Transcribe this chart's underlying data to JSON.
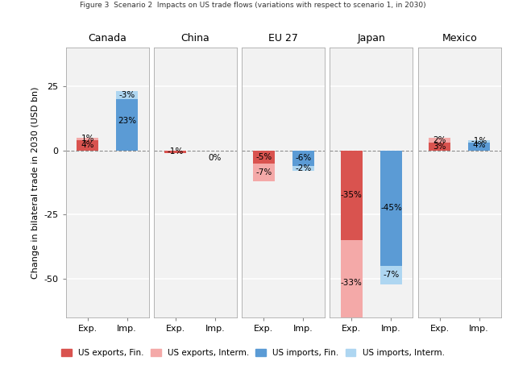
{
  "title": "Figure 3  Scenario 2  Impacts on US trade flows (variations with respect to scenario 1, in 2030)",
  "ylabel": "Change in bilateral trade in 2030 (USD bn)",
  "ylim": [
    -65,
    40
  ],
  "yticks": [
    -50,
    -25,
    0,
    25
  ],
  "groups": [
    "Canada",
    "China",
    "EU 27",
    "Japan",
    "Mexico"
  ],
  "colors": {
    "exports_fin": "#d9534f",
    "exports_interm": "#f4a9a8",
    "imports_fin": "#5b9bd5",
    "imports_interm": "#aed6f1"
  },
  "bar_width": 0.55,
  "data": {
    "Canada": {
      "Exp": {
        "fin_val": 4,
        "fin_label": "4%",
        "int_val": 1,
        "int_label": "1%",
        "type": "export"
      },
      "Imp": {
        "fin_val": 23,
        "fin_label": "23%",
        "int_val": -3,
        "int_label": "-3%",
        "type": "import"
      }
    },
    "China": {
      "Exp": {
        "fin_val": -1,
        "fin_label": "-1%",
        "int_val": 0,
        "int_label": "",
        "type": "export"
      },
      "Imp": {
        "fin_val": 0,
        "fin_label": "0%",
        "int_val": 0,
        "int_label": "",
        "type": "import"
      }
    },
    "EU 27": {
      "Exp": {
        "fin_val": -5,
        "fin_label": "-5%",
        "int_val": -7,
        "int_label": "-7%",
        "type": "export"
      },
      "Imp": {
        "fin_val": -6,
        "fin_label": "-6%",
        "int_val": -2,
        "int_label": "-2%",
        "type": "import"
      }
    },
    "Japan": {
      "Exp": {
        "fin_val": -35,
        "fin_label": "-35%",
        "int_val": -33,
        "int_label": "-33%",
        "type": "export"
      },
      "Imp": {
        "fin_val": -45,
        "fin_label": "-45%",
        "int_val": -7,
        "int_label": "-7%",
        "type": "import"
      }
    },
    "Mexico": {
      "Exp": {
        "fin_val": 3,
        "fin_label": "3%",
        "int_val": 2,
        "int_label": "2%",
        "type": "export"
      },
      "Imp": {
        "fin_val": 4,
        "fin_label": "4%",
        "int_val": -1,
        "int_label": "-1%",
        "type": "import"
      }
    }
  },
  "legend": [
    {
      "label": "US exports, Fin.",
      "color": "#d9534f"
    },
    {
      "label": "US exports, Interm.",
      "color": "#f4a9a8"
    },
    {
      "label": "US imports, Fin.",
      "color": "#5b9bd5"
    },
    {
      "label": "US imports, Interm.",
      "color": "#aed6f1"
    }
  ]
}
